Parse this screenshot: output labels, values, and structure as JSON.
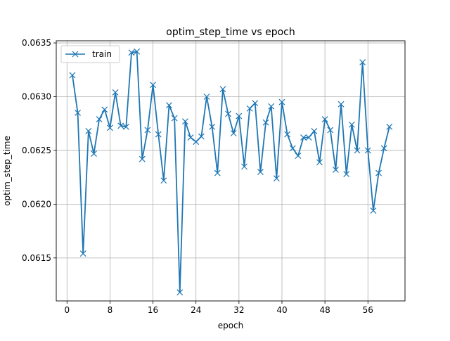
{
  "chart_data": {
    "type": "line",
    "title": "optim_step_time vs epoch",
    "xlabel": "epoch",
    "ylabel": "optim_step_time",
    "xlim": [
      -2.0,
      62.9
    ],
    "ylim": [
      0.0611,
      0.06352
    ],
    "xticks": [
      0,
      8,
      16,
      24,
      32,
      40,
      48,
      56
    ],
    "yticks": [
      0.0615,
      0.062,
      0.0625,
      0.063,
      0.0635
    ],
    "ytick_labels": [
      "0.0615",
      "0.0620",
      "0.0625",
      "0.0630",
      "0.0635"
    ],
    "grid": true,
    "legend_position": "top-left",
    "series": [
      {
        "name": "train",
        "color": "#1f77b4",
        "marker": "x",
        "x": [
          1,
          2,
          3,
          4,
          5,
          6,
          7,
          8,
          9,
          10,
          11,
          12,
          13,
          14,
          15,
          16,
          17,
          18,
          19,
          20,
          21,
          22,
          23,
          24,
          25,
          26,
          27,
          28,
          29,
          30,
          31,
          32,
          33,
          34,
          35,
          36,
          37,
          38,
          39,
          40,
          41,
          42,
          43,
          44,
          45,
          46,
          47,
          48,
          49,
          50,
          51,
          52,
          53,
          54,
          55,
          56,
          57,
          58,
          59,
          60
        ],
        "y": [
          0.0632,
          0.06285,
          0.06154,
          0.06268,
          0.06247,
          0.06279,
          0.06288,
          0.06271,
          0.06304,
          0.06273,
          0.06272,
          0.06341,
          0.06342,
          0.06242,
          0.06269,
          0.06311,
          0.06265,
          0.06222,
          0.06292,
          0.0628,
          0.06118,
          0.06277,
          0.06262,
          0.06258,
          0.06263,
          0.063,
          0.06272,
          0.06229,
          0.06307,
          0.06284,
          0.06266,
          0.06282,
          0.06235,
          0.06289,
          0.06294,
          0.0623,
          0.06276,
          0.06291,
          0.06224,
          0.06295,
          0.06265,
          0.06252,
          0.06245,
          0.06262,
          0.06262,
          0.06268,
          0.06239,
          0.06279,
          0.06269,
          0.06232,
          0.06293,
          0.06228,
          0.06274,
          0.0625,
          0.06332,
          0.0625,
          0.06194,
          0.06229,
          0.06252,
          0.06272
        ]
      }
    ]
  }
}
